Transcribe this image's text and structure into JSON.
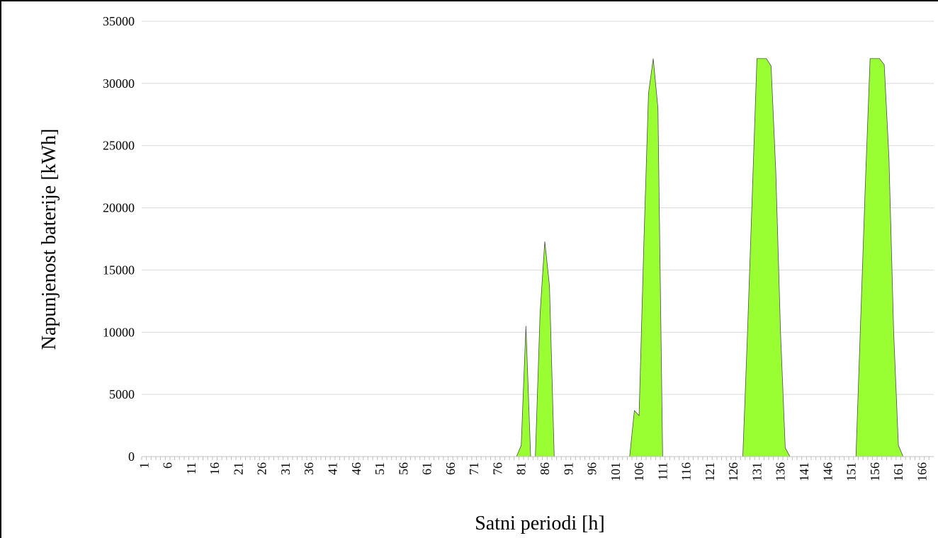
{
  "chart_data": {
    "type": "area",
    "x_label": "Satni periodi [h]",
    "y_label": "Napunjenost baterije [kWh]",
    "color": "#99ff33",
    "grid": true,
    "ylim": [
      0,
      35000
    ],
    "yticks": [
      0,
      5000,
      10000,
      15000,
      20000,
      25000,
      30000,
      35000
    ],
    "categories": [
      "1",
      null,
      null,
      null,
      null,
      "6",
      null,
      null,
      null,
      null,
      "11",
      null,
      null,
      null,
      null,
      "16",
      null,
      null,
      null,
      null,
      "21",
      null,
      null,
      null,
      null,
      "26",
      null,
      null,
      null,
      null,
      "31",
      null,
      null,
      null,
      null,
      "36",
      null,
      null,
      null,
      null,
      "41",
      null,
      null,
      null,
      null,
      "46",
      null,
      null,
      null,
      null,
      "51",
      null,
      null,
      null,
      null,
      "56",
      null,
      null,
      null,
      null,
      "61",
      null,
      null,
      null,
      null,
      "66",
      null,
      null,
      null,
      null,
      "71",
      null,
      null,
      null,
      null,
      "76",
      null,
      null,
      null,
      null,
      "81",
      null,
      null,
      null,
      null,
      "86",
      null,
      null,
      null,
      null,
      "91",
      null,
      null,
      null,
      null,
      "96",
      null,
      null,
      null,
      null,
      "101",
      null,
      null,
      null,
      null,
      "106",
      null,
      null,
      null,
      null,
      "111",
      null,
      null,
      null,
      null,
      "116",
      null,
      null,
      null,
      null,
      "121",
      null,
      null,
      null,
      null,
      "126",
      null,
      null,
      null,
      null,
      "131",
      null,
      null,
      null,
      null,
      "136",
      null,
      null,
      null,
      null,
      "141",
      null,
      null,
      null,
      null,
      "146",
      null,
      null,
      null,
      null,
      "151",
      null,
      null,
      null,
      null,
      "156",
      null,
      null,
      null,
      null,
      "161",
      null,
      null,
      null,
      null,
      "166",
      null,
      null
    ],
    "values": [
      0,
      0,
      0,
      0,
      0,
      0,
      0,
      0,
      0,
      0,
      0,
      0,
      0,
      0,
      0,
      0,
      0,
      0,
      0,
      0,
      0,
      0,
      0,
      0,
      0,
      0,
      0,
      0,
      0,
      0,
      0,
      0,
      0,
      0,
      0,
      0,
      0,
      0,
      0,
      0,
      0,
      0,
      0,
      0,
      0,
      0,
      0,
      0,
      0,
      0,
      0,
      0,
      0,
      0,
      0,
      0,
      0,
      0,
      0,
      0,
      0,
      0,
      0,
      0,
      0,
      0,
      0,
      0,
      0,
      0,
      0,
      0,
      0,
      0,
      0,
      0,
      0,
      0,
      0,
      0,
      900,
      10500,
      0,
      0,
      11500,
      17300,
      13700,
      0,
      0,
      0,
      0,
      0,
      0,
      0,
      0,
      0,
      0,
      0,
      0,
      0,
      0,
      0,
      0,
      0,
      3700,
      3300,
      17000,
      29200,
      32000,
      28000,
      0,
      0,
      0,
      0,
      0,
      0,
      0,
      0,
      0,
      0,
      0,
      0,
      0,
      0,
      0,
      0,
      0,
      0,
      10000,
      21000,
      32000,
      32000,
      32000,
      31400,
      22900,
      10000,
      700,
      0,
      0,
      0,
      0,
      0,
      0,
      0,
      0,
      0,
      0,
      0,
      0,
      0,
      0,
      0,
      11000,
      22000,
      32000,
      32000,
      32000,
      31500,
      24000,
      10000,
      900,
      0,
      0,
      0,
      0,
      0,
      0,
      0
    ]
  }
}
